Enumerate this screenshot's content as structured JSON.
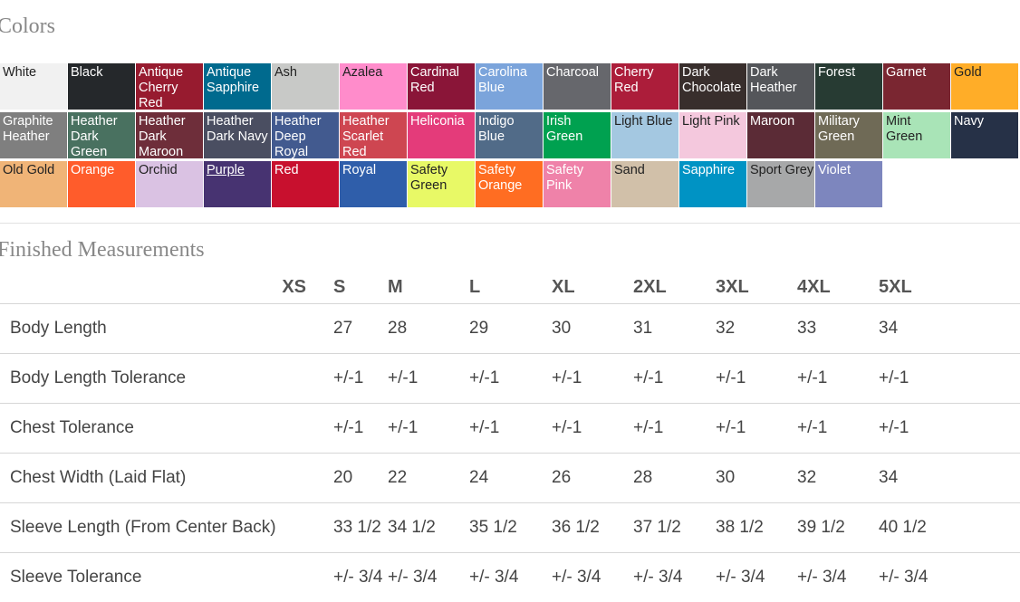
{
  "colors_title": "Colors",
  "colors": [
    {
      "name": "White",
      "bg": "#f1f1f1",
      "fg": "#222222"
    },
    {
      "name": "Black",
      "bg": "#25282b",
      "fg": "#ffffff"
    },
    {
      "name": "Antique Cherry Red",
      "bg": "#971b2f",
      "fg": "#ffffff"
    },
    {
      "name": "Antique Sapphire",
      "bg": "#006a8e",
      "fg": "#ffffff"
    },
    {
      "name": "Ash",
      "bg": "#c8c9c7",
      "fg": "#222222"
    },
    {
      "name": "Azalea",
      "bg": "#ff8ccb",
      "fg": "#222222"
    },
    {
      "name": "Cardinal Red",
      "bg": "#8a1538",
      "fg": "#ffffff"
    },
    {
      "name": "Carolina Blue",
      "bg": "#7ba4db",
      "fg": "#ffffff"
    },
    {
      "name": "Charcoal",
      "bg": "#66676c",
      "fg": "#ffffff"
    },
    {
      "name": "Cherry Red",
      "bg": "#ac1d3a",
      "fg": "#ffffff"
    },
    {
      "name": "Dark Chocolate",
      "bg": "#382e2c",
      "fg": "#ffffff"
    },
    {
      "name": "Dark Heather",
      "bg": "#54565a",
      "fg": "#ffffff"
    },
    {
      "name": "Forest",
      "bg": "#273b33",
      "fg": "#ffffff"
    },
    {
      "name": "Garnet",
      "bg": "#7a2631",
      "fg": "#ffffff"
    },
    {
      "name": "Gold",
      "bg": "#ffad28",
      "fg": "#222222"
    },
    {
      "name": "Graphite Heather",
      "bg": "#7f7f7f",
      "fg": "#ffffff"
    },
    {
      "name": "Heather Dark Green",
      "bg": "#497160",
      "fg": "#ffffff"
    },
    {
      "name": "Heather Dark Maroon",
      "bg": "#6e2e3a",
      "fg": "#ffffff"
    },
    {
      "name": "Heather Dark Navy",
      "bg": "#4a4e61",
      "fg": "#ffffff"
    },
    {
      "name": "Heather Deep Royal",
      "bg": "#425a8f",
      "fg": "#ffffff"
    },
    {
      "name": "Heather Scarlet Red",
      "bg": "#ce4651",
      "fg": "#ffffff"
    },
    {
      "name": "Heliconia",
      "bg": "#e43b7a",
      "fg": "#ffffff"
    },
    {
      "name": "Indigo Blue",
      "bg": "#516b88",
      "fg": "#ffffff"
    },
    {
      "name": "Irish Green",
      "bg": "#00a150",
      "fg": "#ffffff"
    },
    {
      "name": "Light Blue",
      "bg": "#a4c8e1",
      "fg": "#222222"
    },
    {
      "name": "Light Pink",
      "bg": "#f4c8dd",
      "fg": "#222222"
    },
    {
      "name": "Maroon",
      "bg": "#5b2b36",
      "fg": "#ffffff"
    },
    {
      "name": "Military Green",
      "bg": "#6f6a56",
      "fg": "#ffffff"
    },
    {
      "name": "Mint Green",
      "bg": "#a9e4b7",
      "fg": "#222222"
    },
    {
      "name": "Navy",
      "bg": "#263147",
      "fg": "#ffffff"
    },
    {
      "name": "Old Gold",
      "bg": "#f0b477",
      "fg": "#222222"
    },
    {
      "name": "Orange",
      "bg": "#ff5c2b",
      "fg": "#ffffff"
    },
    {
      "name": "Orchid",
      "bg": "#dac2e3",
      "fg": "#222222"
    },
    {
      "name": "Purple",
      "bg": "#473371",
      "fg": "#ffffff",
      "link": true
    },
    {
      "name": "Red",
      "bg": "#c8102e",
      "fg": "#ffffff"
    },
    {
      "name": "Royal",
      "bg": "#2f5eaa",
      "fg": "#ffffff"
    },
    {
      "name": "Safety Green",
      "bg": "#e8f966",
      "fg": "#222222"
    },
    {
      "name": "Safety Orange",
      "bg": "#ff6d22",
      "fg": "#ffffff"
    },
    {
      "name": "Safety Pink",
      "bg": "#ef82a9",
      "fg": "#ffffff"
    },
    {
      "name": "Sand",
      "bg": "#d1c0a9",
      "fg": "#222222"
    },
    {
      "name": "Sapphire",
      "bg": "#0093c4",
      "fg": "#ffffff"
    },
    {
      "name": "Sport Grey",
      "bg": "#a7a8a9",
      "fg": "#222222"
    },
    {
      "name": "Violet",
      "bg": "#7d86be",
      "fg": "#ffffff"
    }
  ],
  "measurements_title": "Finished Measurements",
  "sizes": [
    "XS",
    "S",
    "M",
    "L",
    "XL",
    "2XL",
    "3XL",
    "4XL",
    "5XL"
  ],
  "rows": [
    {
      "label": "Body Length",
      "values": [
        "",
        "27",
        "28",
        "29",
        "30",
        "31",
        "32",
        "33",
        "34"
      ]
    },
    {
      "label": "Body Length Tolerance",
      "values": [
        "",
        "+/-1",
        "+/-1",
        "+/-1",
        "+/-1",
        "+/-1",
        "+/-1",
        "+/-1",
        "+/-1"
      ]
    },
    {
      "label": "Chest Tolerance",
      "values": [
        "",
        "+/-1",
        "+/-1",
        "+/-1",
        "+/-1",
        "+/-1",
        "+/-1",
        "+/-1",
        "+/-1"
      ]
    },
    {
      "label": "Chest Width (Laid Flat)",
      "values": [
        "",
        "20",
        "22",
        "24",
        "26",
        "28",
        "30",
        "32",
        "34"
      ]
    },
    {
      "label": "Sleeve Length (From Center Back)",
      "values": [
        "",
        "33 1/2",
        "34 1/2",
        "35 1/2",
        "36 1/2",
        "37 1/2",
        "38 1/2",
        "39 1/2",
        "40 1/2"
      ]
    },
    {
      "label": "Sleeve Tolerance",
      "values": [
        "",
        "+/- 3/4",
        "+/- 3/4",
        "+/- 3/4",
        "+/- 3/4",
        "+/- 3/4",
        "+/- 3/4",
        "+/- 3/4",
        "+/- 3/4"
      ]
    }
  ]
}
